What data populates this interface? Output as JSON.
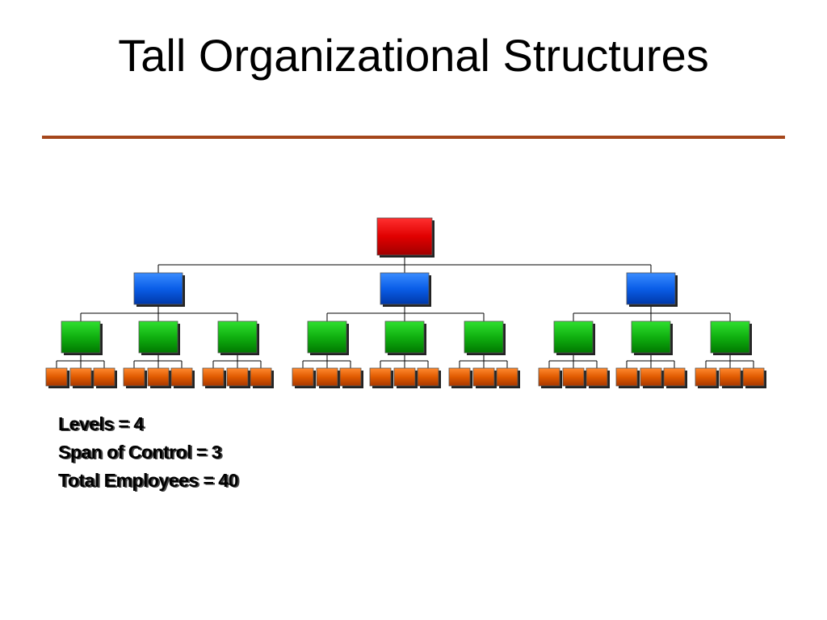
{
  "title": "Tall Organizational Structures",
  "stats": [
    "Levels = 4",
    "Span of Control = 3",
    "Total Employees = 40"
  ]
}
